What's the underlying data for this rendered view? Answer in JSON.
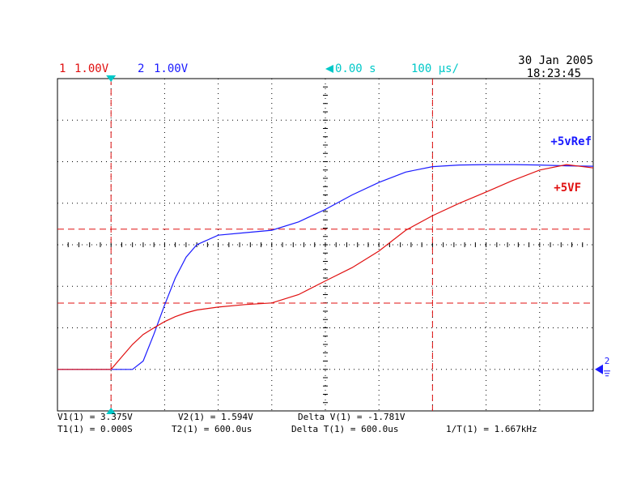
{
  "header": {
    "ch1_num": "1",
    "ch1_scale": "1.00V",
    "ch2_num": "2",
    "ch2_scale": "1.00V",
    "delay": "0.00 s",
    "timebase": "100 µs/",
    "date": "30 Jan 2005",
    "time": "18:23:45"
  },
  "chart_data": {
    "type": "line",
    "x": [
      -100,
      0,
      20,
      40,
      60,
      80,
      100,
      120,
      140,
      160,
      200,
      250,
      300,
      350,
      400,
      450,
      500,
      550,
      600,
      650,
      700,
      750,
      800,
      850,
      900
    ],
    "series": [
      {
        "name": "+5vRef",
        "color": "#1a1aff",
        "values": [
          0,
          0,
          0,
          0,
          0.2,
          0.85,
          1.55,
          2.2,
          2.7,
          3.0,
          3.23,
          3.29,
          3.35,
          3.55,
          3.85,
          4.2,
          4.5,
          4.75,
          4.88,
          4.92,
          4.93,
          4.93,
          4.92,
          4.9,
          4.89
        ]
      },
      {
        "name": "+5VF",
        "color": "#e01010",
        "values": [
          0,
          0,
          0.3,
          0.6,
          0.84,
          1.0,
          1.15,
          1.27,
          1.36,
          1.43,
          1.5,
          1.56,
          1.6,
          1.8,
          2.13,
          2.45,
          2.85,
          3.35,
          3.7,
          4.0,
          4.27,
          4.55,
          4.8,
          4.93,
          4.85
        ]
      }
    ],
    "xlim": [
      -100,
      900
    ],
    "ylim": [
      -1,
      7
    ],
    "xticks": [
      -100,
      0,
      100,
      200,
      300,
      400,
      500,
      600,
      700,
      800,
      900
    ],
    "yticks": [
      -1,
      0,
      1,
      2,
      3,
      4,
      5,
      6,
      7
    ],
    "grid": true,
    "y_cursors": [
      3.375,
      1.594
    ],
    "x_cursors": [
      0,
      600
    ],
    "cursor_color": "#e01010",
    "ground_label": "2"
  },
  "readouts": {
    "line1": [
      "V1(1) = 3.375V",
      "V2(1) = 1.594V",
      "Delta V(1) = -1.781V"
    ],
    "line2": [
      "T1(1) = 0.000S",
      "T2(1) = 600.0us",
      "Delta T(1) = 600.0us",
      "1/T(1) = 1.667kHz"
    ]
  }
}
